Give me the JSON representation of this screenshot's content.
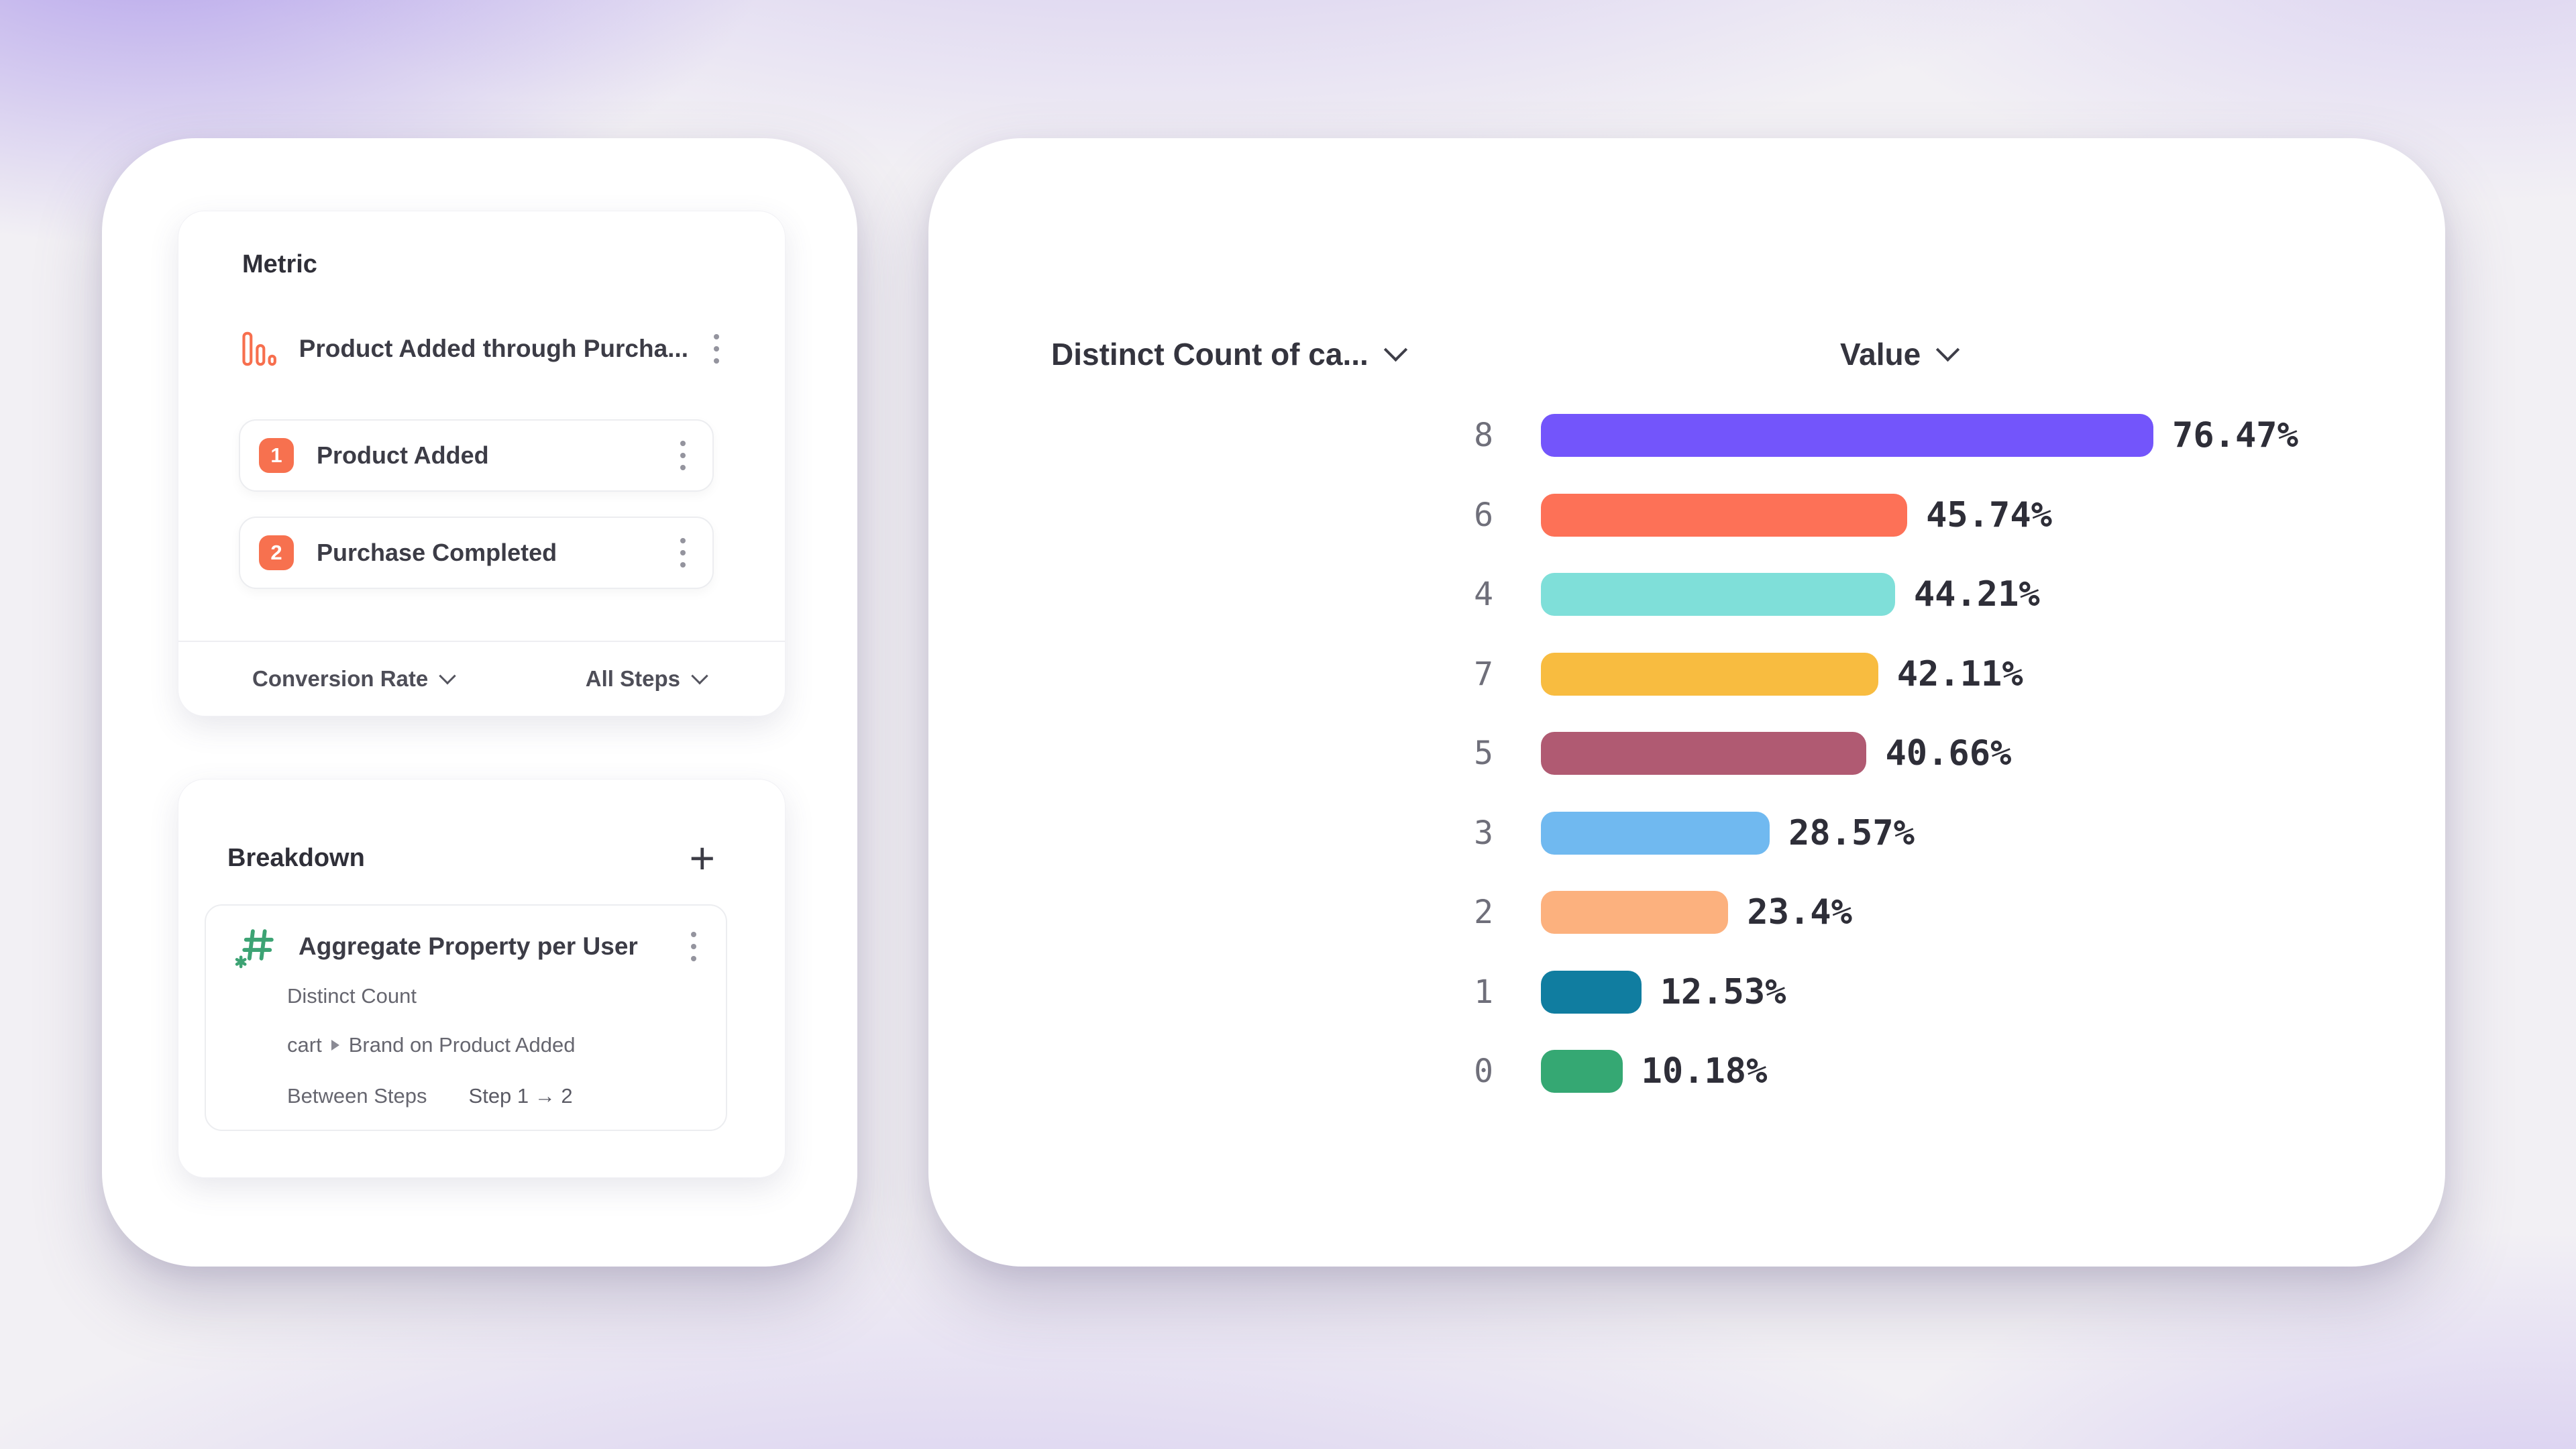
{
  "metric_panel": {
    "title": "Metric",
    "funnel": {
      "name": "Product Added through Purcha...",
      "icon": "funnel-bars-icon",
      "icon_color": "#f76f4e",
      "steps": [
        {
          "num": "1",
          "label": "Product Added"
        },
        {
          "num": "2",
          "label": "Purchase Completed"
        }
      ],
      "badge_color": "#f7714f"
    },
    "footer": {
      "left_dropdown": "Conversion Rate",
      "right_dropdown": "All Steps"
    }
  },
  "breakdown_panel": {
    "title": "Breakdown",
    "add_button": "+",
    "property": {
      "icon": "numeric-hash-icon",
      "icon_color": "#3da374",
      "name": "Aggregate Property per User",
      "aggregation": "Distinct Count",
      "path_prefix": "cart",
      "path_suffix": "Brand on Product Added",
      "between_label": "Between Steps",
      "between_value": "Step 1 → 2"
    }
  },
  "chart": {
    "headers": [
      {
        "label": "Distinct Count of ca..."
      },
      {
        "label": "Value"
      }
    ]
  },
  "chart_data": {
    "type": "bar",
    "orientation": "horizontal",
    "title": "",
    "xlabel": "Value",
    "ylabel": "Distinct Count of ca...",
    "xlim": [
      0,
      100
    ],
    "grid": false,
    "categories": [
      "8",
      "6",
      "4",
      "7",
      "5",
      "3",
      "2",
      "1",
      "0"
    ],
    "values": [
      76.47,
      45.74,
      44.21,
      42.11,
      40.66,
      28.57,
      23.4,
      12.53,
      10.18
    ],
    "value_labels": [
      "76.47%",
      "45.74%",
      "44.21%",
      "42.11%",
      "40.66%",
      "28.57%",
      "23.4%",
      "12.53%",
      "10.18%"
    ],
    "colors": [
      "#7355fb",
      "#fd7157",
      "#7fdfd9",
      "#f8bc40",
      "#b05a72",
      "#70b9f0",
      "#fcb17e",
      "#107da0",
      "#35a873"
    ]
  }
}
